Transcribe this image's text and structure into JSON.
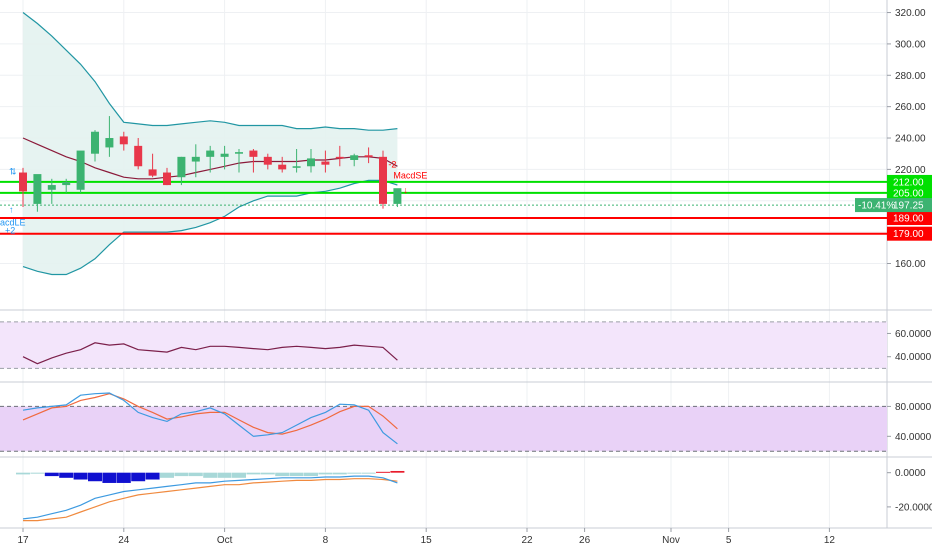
{
  "chart_data": {
    "type": "candlestick",
    "x_axis": {
      "labels": [
        "17",
        "24",
        "Oct",
        "8",
        "15",
        "22",
        "26",
        "Nov",
        "5",
        "12"
      ],
      "label_days": [
        0,
        7,
        14,
        21,
        28,
        35,
        39,
        45,
        49,
        56
      ]
    },
    "price_axis": {
      "ylim": [
        138,
        328
      ],
      "ticks": [
        160,
        180,
        200,
        220,
        240,
        260,
        280,
        300,
        320
      ],
      "tick_labels": [
        "160.00",
        "180.00",
        "200.00",
        "220.00",
        "240.00",
        "260.00",
        "280.00",
        "300.00",
        "320.00"
      ]
    },
    "candles": {
      "day": [
        0,
        1,
        2,
        3,
        4,
        5,
        6,
        7,
        8,
        9,
        10,
        11,
        12,
        13,
        14,
        15,
        16,
        17,
        18,
        19,
        20,
        21,
        22,
        23,
        24,
        25,
        26
      ],
      "open": [
        218,
        198,
        207,
        210,
        207,
        230,
        234,
        241,
        235,
        220,
        218,
        215,
        225,
        228,
        228,
        230,
        232,
        228,
        223,
        221,
        222,
        225,
        228,
        226,
        229,
        228,
        198
      ],
      "high": [
        221,
        216,
        214,
        214,
        226,
        245,
        254,
        244,
        240,
        230,
        221,
        228,
        236,
        235,
        235,
        233,
        233,
        230,
        228,
        233,
        233,
        232,
        235,
        230,
        234,
        232,
        206
      ],
      "low": [
        196,
        193,
        198,
        205,
        205,
        225,
        228,
        232,
        220,
        215,
        210,
        210,
        215,
        218,
        220,
        218,
        218,
        220,
        218,
        218,
        218,
        218,
        222,
        222,
        224,
        195,
        196
      ],
      "close": [
        206,
        217,
        210,
        212,
        232,
        244,
        240,
        236,
        222,
        216,
        210,
        228,
        228,
        232,
        230,
        231,
        228,
        223,
        220,
        222,
        227,
        223,
        227,
        229,
        228,
        198,
        208
      ]
    },
    "bollinger": {
      "upper": [
        320,
        313,
        305,
        296,
        287,
        276,
        262,
        250,
        249,
        248,
        248,
        249,
        250,
        251,
        250,
        248,
        248,
        248,
        248,
        246,
        246,
        247,
        246,
        246,
        245,
        245,
        246
      ],
      "basis": [
        240,
        236,
        232,
        228,
        225,
        221,
        218,
        215,
        214,
        214,
        215,
        216,
        218,
        220,
        222,
        224,
        225,
        225,
        225,
        225,
        226,
        226,
        227,
        228,
        228,
        227,
        222
      ],
      "lower": [
        158,
        155,
        153,
        153,
        157,
        163,
        172,
        180,
        180,
        180,
        180,
        181,
        183,
        186,
        190,
        196,
        200,
        203,
        203,
        203,
        205,
        206,
        208,
        211,
        213,
        213,
        210
      ]
    },
    "horizontal_levels": [
      {
        "value": 212,
        "label": "212.00",
        "color": "#00e000"
      },
      {
        "value": 205,
        "label": "205.00",
        "color": "#00e000"
      },
      {
        "value": 189,
        "label": "189.00",
        "color": "#ff0000"
      },
      {
        "value": 179,
        "label": "179.00",
        "color": "#ff0000"
      }
    ],
    "last_price": {
      "value": 197.25,
      "label": "197.25",
      "change_label": "-10.41%"
    },
    "signals": [
      {
        "type": "MacdLE",
        "day": 0,
        "label": "acdLE",
        "extra": "+2",
        "color": "#2196f3"
      },
      {
        "type": "MacdSE",
        "day": 26,
        "label": "MacdSE",
        "extra": "-2",
        "color": "#ff0000"
      }
    ],
    "rsi": {
      "ylim": [
        20,
        75
      ],
      "ticks": [
        40,
        60
      ],
      "tick_labels": [
        "40.0000",
        "60.0000"
      ],
      "band": [
        30,
        70
      ],
      "values": [
        40,
        34,
        39,
        43,
        46,
        52,
        50,
        51,
        46,
        45,
        44,
        48,
        46,
        49,
        49,
        48,
        47,
        46,
        48,
        49,
        48,
        47,
        48,
        50,
        49,
        48,
        37
      ]
    },
    "stoch": {
      "ylim": [
        15,
        110
      ],
      "ticks": [
        40,
        80
      ],
      "tick_labels": [
        "40.0000",
        "80.0000"
      ],
      "band": [
        20,
        80
      ],
      "k": [
        75,
        78,
        80,
        82,
        95,
        97,
        98,
        88,
        72,
        65,
        60,
        70,
        73,
        78,
        70,
        55,
        40,
        42,
        45,
        55,
        65,
        72,
        83,
        82,
        75,
        45,
        30
      ],
      "d": [
        62,
        70,
        78,
        80,
        88,
        92,
        97,
        90,
        80,
        72,
        63,
        66,
        70,
        72,
        72,
        62,
        52,
        45,
        43,
        48,
        55,
        63,
        73,
        80,
        80,
        67,
        50
      ]
    },
    "macd": {
      "ylim": [
        -30,
        8
      ],
      "ticks": [
        0,
        -20
      ],
      "tick_labels": [
        "0.0000",
        "-20.0000"
      ],
      "histogram": [
        -1,
        0,
        -2,
        -3,
        -4,
        -5,
        -6,
        -6,
        -5,
        -4,
        -3,
        -2,
        -2,
        -3,
        -3,
        -3,
        -1,
        -1,
        -2,
        -2,
        -2,
        -1,
        -1,
        -0.5,
        0,
        0.5,
        1
      ],
      "macd": [
        -27,
        -26,
        -24,
        -22,
        -19,
        -15,
        -13,
        -11,
        -10,
        -9,
        -8,
        -7,
        -6,
        -6,
        -5,
        -4.5,
        -4,
        -3.5,
        -3,
        -3,
        -3,
        -2.5,
        -2.5,
        -2,
        -2,
        -3,
        -6
      ],
      "signal": [
        -28,
        -28,
        -27,
        -26,
        -23,
        -20,
        -17,
        -15,
        -13,
        -12,
        -11,
        -10,
        -9,
        -8,
        -7,
        -7,
        -6,
        -5.5,
        -5,
        -4.5,
        -4.5,
        -4,
        -4,
        -3.5,
        -3.5,
        -4,
        -5
      ]
    },
    "colors": {
      "up": "#3cb371",
      "down": "#e8374a",
      "bb_band": "#2196a3",
      "bb_basis": "#8b1a3a",
      "bb_fill": "#e3f2f0",
      "rsi_line": "#7b1f4a",
      "rsi_fill": "#f3e5fb",
      "stoch_k": "#3d9ae0",
      "stoch_d": "#f06a3f",
      "stoch_fill": "#e9d2f7",
      "macd_line": "#3d9ae0",
      "signal_line": "#f08a3f",
      "hist_strong_neg": "#1010d0",
      "hist_weak_neg": "#a8d8d8",
      "hist_pos": "#e81c2c"
    }
  }
}
